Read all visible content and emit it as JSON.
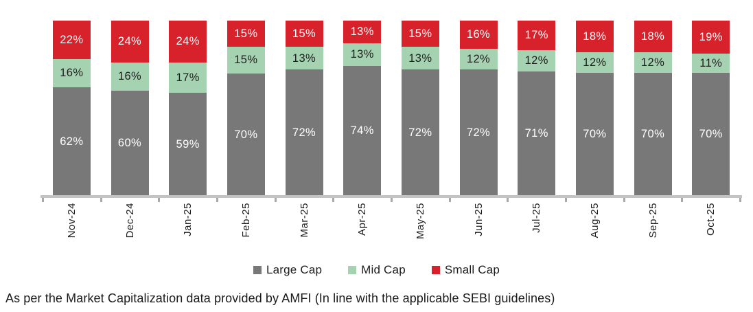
{
  "chart_data": {
    "type": "bar",
    "variant": "stacked-100-percent",
    "title": "",
    "unit": "%",
    "categories": [
      "Nov-24",
      "Dec-24",
      "Jan-25",
      "Feb-25",
      "Mar-25",
      "Apr-25",
      "May-25",
      "Jun-25",
      "Jul-25",
      "Aug-25",
      "Sep-25",
      "Oct-25"
    ],
    "series": [
      {
        "name": "Large Cap",
        "color": "#787878",
        "label_color": "#ffffff",
        "values": [
          62,
          60,
          59,
          70,
          72,
          74,
          72,
          72,
          71,
          70,
          70,
          70
        ]
      },
      {
        "name": "Mid Cap",
        "color": "#a5d2b0",
        "label_color": "#1f1f1f",
        "values": [
          16,
          16,
          17,
          15,
          13,
          13,
          13,
          12,
          12,
          12,
          12,
          11
        ]
      },
      {
        "name": "Small Cap",
        "color": "#d7222c",
        "label_color": "#ffffff",
        "values": [
          22,
          24,
          24,
          15,
          15,
          13,
          15,
          16,
          17,
          18,
          18,
          19
        ]
      }
    ],
    "stack_order_top_to_bottom": [
      "Small Cap",
      "Mid Cap",
      "Large Cap"
    ],
    "ylim": [
      0,
      100
    ],
    "grid": false,
    "legend_position": "bottom",
    "axis_color": "#c3c3c3",
    "tick_color": "#a9a9a9"
  },
  "footnote": "As per the Market Capitalization data provided by AMFI (In line with the applicable SEBI guidelines)"
}
